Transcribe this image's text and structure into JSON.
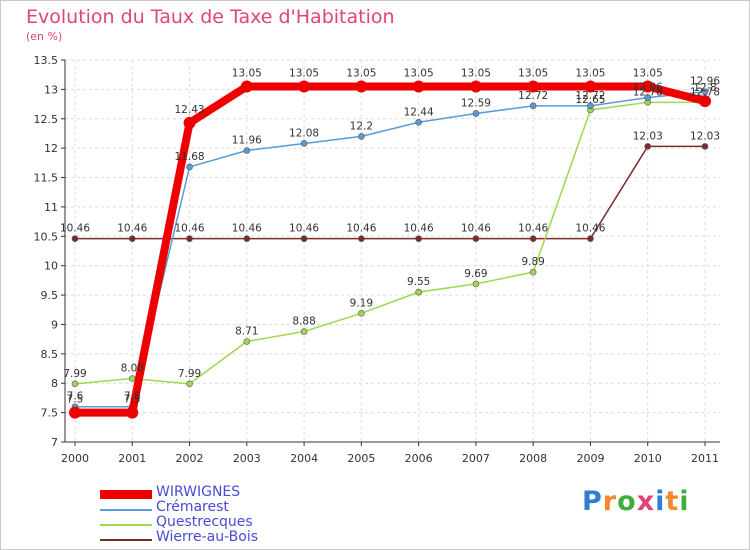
{
  "header": {
    "title": "Evolution du Taux de Taxe d'Habitation",
    "unit": "(en %)"
  },
  "logo": {
    "text": "Proxiti",
    "colors": [
      "#2f7fd0",
      "#f08a2a",
      "#3fae3f",
      "#e0447a",
      "#2f7fd0",
      "#f08a2a",
      "#3fae3f"
    ]
  },
  "chart_data": {
    "type": "line",
    "title": "Evolution du Taux de Taxe d'Habitation",
    "ylabel": "(en %)",
    "xlabel": "",
    "x": [
      "2000",
      "2001",
      "2002",
      "2003",
      "2004",
      "2005",
      "2006",
      "2007",
      "2008",
      "2009",
      "2010",
      "2011"
    ],
    "ylim": [
      7,
      13.5
    ],
    "yticks": [
      "7",
      "7.5",
      "8",
      "8.5",
      "9",
      "9.5",
      "10",
      "10.5",
      "11",
      "11.5",
      "12",
      "12.5",
      "13",
      "13.5"
    ],
    "grid": true,
    "legend_position": "bottom-left",
    "series": [
      {
        "name": "WIRWIGNES",
        "color": "#ee0000",
        "emphasis": true,
        "values": [
          7.5,
          7.5,
          12.43,
          13.05,
          13.05,
          13.05,
          13.05,
          13.05,
          13.05,
          13.05,
          13.05,
          12.8
        ],
        "labels": [
          "7.5",
          "7.5",
          "12.43",
          "13.05",
          "13.05",
          "13.05",
          "13.05",
          "13.05",
          "13.05",
          "13.05",
          "13.05",
          "12.8"
        ]
      },
      {
        "name": "Crémarest",
        "color": "#5a9bd5",
        "values": [
          7.6,
          7.6,
          11.68,
          11.96,
          12.08,
          12.2,
          12.44,
          12.59,
          12.72,
          12.72,
          12.86,
          12.96
        ],
        "labels": [
          "7.6",
          "7.6",
          "11.68",
          "11.96",
          "12.08",
          "12.2",
          "12.44",
          "12.59",
          "12.72",
          "12.72",
          "12.86",
          "12.96"
        ]
      },
      {
        "name": "Questrecques",
        "color": "#9ed850",
        "values": [
          7.99,
          8.08,
          7.99,
          8.71,
          8.88,
          9.19,
          9.55,
          9.69,
          9.89,
          12.65,
          12.78,
          12.78
        ],
        "labels": [
          "7.99",
          "8.08",
          "7.99",
          "8.71",
          "8.88",
          "9.19",
          "9.55",
          "9.69",
          "9.89",
          "12.65",
          "12.78",
          "12.78"
        ]
      },
      {
        "name": "Wierre-au-Bois",
        "color": "#7a2c2c",
        "values": [
          10.46,
          10.46,
          10.46,
          10.46,
          10.46,
          10.46,
          10.46,
          10.46,
          10.46,
          10.46,
          12.03,
          12.03
        ],
        "labels": [
          "10.46",
          "10.46",
          "10.46",
          "10.46",
          "10.46",
          "10.46",
          "10.46",
          "10.46",
          "10.46",
          "10.46",
          "12.03",
          "12.03"
        ]
      }
    ]
  }
}
